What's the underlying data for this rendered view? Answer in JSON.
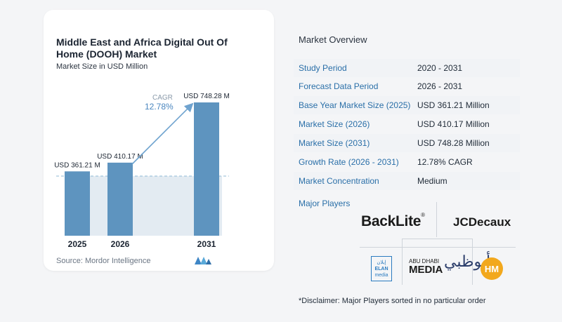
{
  "chart": {
    "title": "Middle East and Africa Digital Out Of Home (DOOH) Market",
    "subtitle": "Market Size in USD Million",
    "source": "Source:  Mordor Intelligence"
  },
  "chart_data": {
    "type": "bar",
    "categories": [
      "2025",
      "2026",
      "2031"
    ],
    "values": [
      361.21,
      410.17,
      748.28
    ],
    "value_labels": [
      "USD 361.21 M",
      "USD 410.17 M",
      "USD 748.28 M"
    ],
    "title": "Middle East and Africa Digital Out Of Home (DOOH) Market",
    "subtitle": "Market Size in USD Million",
    "ylim": [
      0,
      800
    ],
    "cagr_label": "CAGR",
    "cagr_value": "12.78%",
    "colors": {
      "bar": "#5e94bf",
      "bar_light": "#8fb8d6",
      "band": "#e3ebf2",
      "arrow": "#6fa3cf"
    }
  },
  "overview": {
    "title": "Market Overview",
    "rows": [
      {
        "key": "Study Period",
        "value": "2020 - 2031"
      },
      {
        "key": "Forecast Data Period",
        "value": "2026 - 2031"
      },
      {
        "key": "Base Year Market Size (2025)",
        "value": "USD 361.21 Million"
      },
      {
        "key": "Market Size (2026)",
        "value": "USD 410.17 Million"
      },
      {
        "key": "Market Size (2031)",
        "value": "USD 748.28 Million"
      },
      {
        "key": "Growth Rate (2026 - 2031)",
        "value": "12.78% CAGR"
      },
      {
        "key": "Market Concentration",
        "value": "Medium"
      }
    ]
  },
  "players": {
    "title": "Major Players",
    "backlite": "BackLite",
    "backlite_mark": "®",
    "jcdecaux": "JCDecaux",
    "elan_top": "إيلان",
    "elan_name": "ELAN",
    "elan_sub": "media",
    "adm_line1": "ABU DHABI",
    "adm_line2": "MEDIA",
    "adm_glyph": "أبوظبي",
    "hm": "HM"
  },
  "disclaimer": "*Disclaimer: Major Players sorted in no particular order"
}
